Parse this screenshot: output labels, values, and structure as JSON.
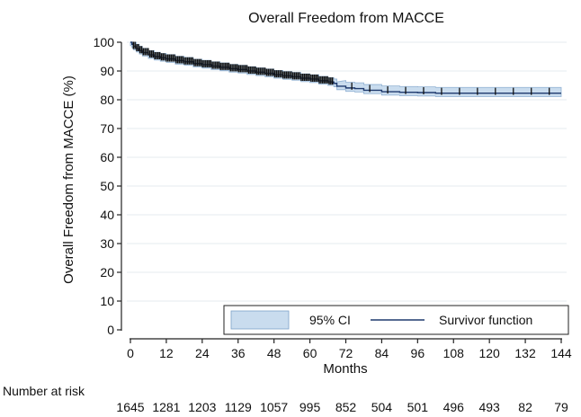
{
  "chart_data": {
    "type": "line",
    "title": "Overall Freedom from MACCE",
    "xlabel": "Months",
    "ylabel": "Overall Freedom from MACCE (%)",
    "xlim": [
      0,
      144
    ],
    "ylim": [
      0,
      100
    ],
    "xticks": [
      0,
      12,
      24,
      36,
      48,
      60,
      72,
      84,
      96,
      108,
      120,
      132,
      144
    ],
    "yticks": [
      0,
      10,
      20,
      30,
      40,
      50,
      60,
      70,
      80,
      90,
      100
    ],
    "grid": true,
    "series": [
      {
        "name": "Survivor function",
        "color": "#1f3a6e",
        "step": true,
        "x": [
          0,
          0.5,
          1,
          2,
          3,
          4,
          6,
          8,
          10,
          12,
          15,
          18,
          21,
          24,
          27,
          30,
          33,
          36,
          39,
          42,
          45,
          48,
          51,
          54,
          57,
          60,
          63,
          66,
          68,
          69,
          72,
          75,
          78,
          84,
          90,
          96,
          102,
          108,
          114,
          120,
          126,
          132,
          138,
          144
        ],
        "y": [
          100,
          99.3,
          98.6,
          97.8,
          97.1,
          96.4,
          95.6,
          95.0,
          94.6,
          94.2,
          93.6,
          93.2,
          92.6,
          92.2,
          91.7,
          91.3,
          90.8,
          90.5,
          90.0,
          89.6,
          89.2,
          88.7,
          88.3,
          88.0,
          87.5,
          87.2,
          86.6,
          86.2,
          85.7,
          84.7,
          84.1,
          83.9,
          83.3,
          82.8,
          82.6,
          82.5,
          82.3,
          82.3,
          82.3,
          82.3,
          82.3,
          82.3,
          82.3,
          82.3
        ]
      }
    ],
    "confidence_band": {
      "name": "95% CI",
      "color": "#c9dcee",
      "lower_offset": 1.2,
      "upper_offset": 1.5,
      "upper_offset_late": 2.0
    },
    "censor_marks": {
      "dense_range_months": [
        1,
        68
      ],
      "sparse_months": [
        74,
        80,
        86,
        92,
        98,
        104,
        110,
        116,
        122,
        128,
        134,
        140
      ]
    },
    "legend": {
      "placement": "bottom-right",
      "entries": [
        "95% CI",
        "Survivor function"
      ]
    },
    "number_at_risk": {
      "label": "Number at risk",
      "months": [
        0,
        12,
        24,
        36,
        48,
        60,
        72,
        84,
        96,
        108,
        120,
        132,
        144
      ],
      "values": [
        "1645",
        "1281",
        "1203",
        "1129",
        "1057",
        "995",
        "852",
        "504",
        "501",
        "496",
        "493",
        "82",
        "79"
      ]
    }
  }
}
